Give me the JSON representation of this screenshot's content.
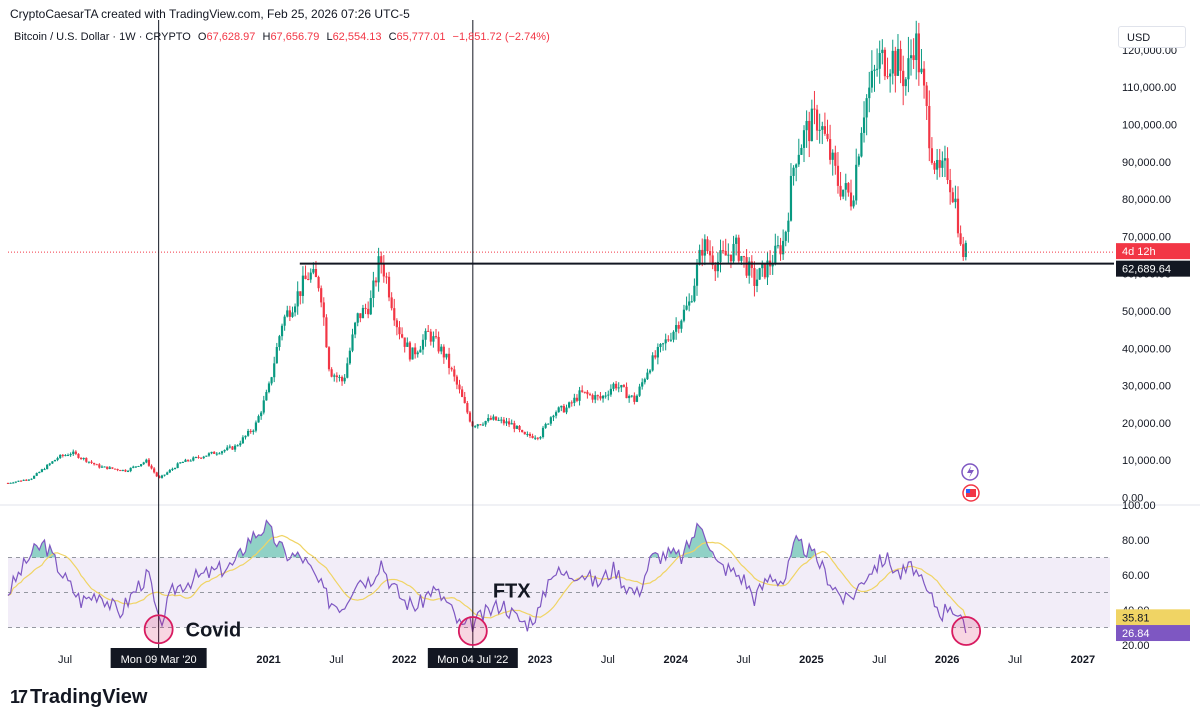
{
  "header": {
    "credit": "CryptoCaesarTA created with TradingView.com, Feb 25, 2026 07:26 UTC-5",
    "symbol": "Bitcoin / U.S. Dollar · 1W · CRYPTO",
    "open_label": "O",
    "open_value": "67,628.97",
    "high_label": "H",
    "high_value": "67,656.79",
    "low_label": "L",
    "low_value": "62,554.13",
    "close_label": "C",
    "close_value": "65,777.01",
    "change": "−1,851.72 (−2.74%)",
    "currency": "USD"
  },
  "logo": {
    "text": "TradingView",
    "mark": "17"
  },
  "colors": {
    "up": "#089981",
    "down": "#f23645",
    "rsi": "#7e57c2",
    "rsi_ma": "#f0d464",
    "band": "#ede7f6",
    "annot": "#d81b60"
  },
  "chart_data": [
    {
      "type": "candlestick",
      "title": "Bitcoin / U.S. Dollar · 1W · CRYPTO",
      "y_ticks": [
        0,
        10000,
        20000,
        30000,
        40000,
        50000,
        60000,
        70000,
        80000,
        90000,
        100000,
        110000,
        120000
      ],
      "y_tick_labels": [
        "0.00",
        "10,000.00",
        "20,000.00",
        "30,000.00",
        "40,000.00",
        "50,000.00",
        "60,000.00",
        "70,000.00",
        "80,000.00",
        "90,000.00",
        "100,000.00",
        "110,000.00",
        "120,000.00"
      ],
      "ylim": [
        -2000,
        128000
      ],
      "x_tick_labels": [
        "Jul",
        "2021",
        "Jul",
        "2022",
        "2023",
        "Jul",
        "2024",
        "Jul",
        "2025",
        "Jul",
        "2026",
        "Jul",
        "2027"
      ],
      "x_tick_dates": [
        2019.5,
        2021.0,
        2021.5,
        2022.0,
        2023.0,
        2023.5,
        2024.0,
        2024.5,
        2025.0,
        2025.5,
        2026.0,
        2026.5,
        2027.0
      ],
      "xlim": [
        2019.08,
        2027.2
      ],
      "price_path": [
        [
          2019.08,
          3900
        ],
        [
          2019.25,
          5100
        ],
        [
          2019.45,
          10800
        ],
        [
          2019.55,
          12000
        ],
        [
          2019.75,
          8300
        ],
        [
          2019.95,
          7200
        ],
        [
          2020.1,
          9800
        ],
        [
          2020.19,
          5000
        ],
        [
          2020.35,
          9300
        ],
        [
          2020.55,
          11500
        ],
        [
          2020.75,
          13500
        ],
        [
          2020.9,
          19000
        ],
        [
          2021.0,
          29000
        ],
        [
          2021.1,
          47000
        ],
        [
          2021.3,
          60000
        ],
        [
          2021.38,
          57000
        ],
        [
          2021.45,
          34000
        ],
        [
          2021.55,
          31000
        ],
        [
          2021.65,
          48000
        ],
        [
          2021.75,
          52000
        ],
        [
          2021.82,
          64000
        ],
        [
          2021.86,
          60000
        ],
        [
          2021.95,
          46000
        ],
        [
          2022.05,
          38000
        ],
        [
          2022.18,
          44000
        ],
        [
          2022.3,
          38000
        ],
        [
          2022.4,
          29000
        ],
        [
          2022.5,
          19500
        ],
        [
          2022.65,
          21000
        ],
        [
          2022.8,
          19500
        ],
        [
          2022.88,
          16500
        ],
        [
          2023.0,
          16600
        ],
        [
          2023.1,
          23000
        ],
        [
          2023.2,
          24000
        ],
        [
          2023.3,
          28000
        ],
        [
          2023.45,
          26500
        ],
        [
          2023.55,
          30500
        ],
        [
          2023.7,
          26000
        ],
        [
          2023.8,
          35000
        ],
        [
          2023.95,
          43000
        ],
        [
          2024.1,
          52000
        ],
        [
          2024.2,
          68000
        ],
        [
          2024.3,
          63000
        ],
        [
          2024.45,
          67000
        ],
        [
          2024.58,
          58000
        ],
        [
          2024.7,
          63000
        ],
        [
          2024.8,
          69000
        ],
        [
          2024.88,
          92000
        ],
        [
          2024.96,
          98000
        ],
        [
          2025.05,
          102000
        ],
        [
          2025.2,
          84000
        ],
        [
          2025.3,
          80000
        ],
        [
          2025.38,
          104000
        ],
        [
          2025.5,
          117000
        ],
        [
          2025.6,
          118000
        ],
        [
          2025.7,
          112000
        ],
        [
          2025.76,
          124000
        ],
        [
          2025.82,
          110000
        ],
        [
          2025.88,
          95000
        ],
        [
          2025.93,
          86000
        ],
        [
          2026.0,
          88000
        ],
        [
          2026.07,
          78000
        ],
        [
          2026.1,
          66000
        ],
        [
          2026.14,
          65777
        ]
      ],
      "hline": {
        "value": 62689.64,
        "label": "62,689.64"
      },
      "last_price": 65777.01,
      "countdown_label": "4d 12h"
    },
    {
      "type": "line",
      "title": "RSI",
      "y_ticks": [
        20,
        40,
        60,
        80,
        100
      ],
      "y_tick_labels": [
        "20.00",
        "40.00",
        "60.00",
        "80.00",
        "100.00"
      ],
      "ylim": [
        20,
        100
      ],
      "band": [
        30,
        70
      ],
      "midline": 50,
      "rsi_path": [
        [
          2019.08,
          50
        ],
        [
          2019.25,
          72
        ],
        [
          2019.35,
          78
        ],
        [
          2019.5,
          58
        ],
        [
          2019.62,
          45
        ],
        [
          2019.75,
          50
        ],
        [
          2019.9,
          38
        ],
        [
          2020.05,
          55
        ],
        [
          2020.12,
          60
        ],
        [
          2020.19,
          30
        ],
        [
          2020.3,
          52
        ],
        [
          2020.45,
          58
        ],
        [
          2020.6,
          62
        ],
        [
          2020.75,
          66
        ],
        [
          2020.85,
          80
        ],
        [
          2020.98,
          88
        ],
        [
          2021.05,
          80
        ],
        [
          2021.12,
          72
        ],
        [
          2021.25,
          70
        ],
        [
          2021.35,
          58
        ],
        [
          2021.45,
          45
        ],
        [
          2021.55,
          42
        ],
        [
          2021.65,
          58
        ],
        [
          2021.75,
          57
        ],
        [
          2021.83,
          68
        ],
        [
          2021.9,
          55
        ],
        [
          2022.0,
          45
        ],
        [
          2022.1,
          42
        ],
        [
          2022.2,
          52
        ],
        [
          2022.3,
          46
        ],
        [
          2022.42,
          30
        ],
        [
          2022.5,
          32
        ],
        [
          2022.6,
          38
        ],
        [
          2022.72,
          44
        ],
        [
          2022.82,
          36
        ],
        [
          2022.9,
          32
        ],
        [
          2023.0,
          40
        ],
        [
          2023.08,
          62
        ],
        [
          2023.2,
          60
        ],
        [
          2023.3,
          62
        ],
        [
          2023.42,
          55
        ],
        [
          2023.55,
          64
        ],
        [
          2023.62,
          55
        ],
        [
          2023.72,
          49
        ],
        [
          2023.82,
          70
        ],
        [
          2023.95,
          72
        ],
        [
          2024.05,
          70
        ],
        [
          2024.15,
          86
        ],
        [
          2024.2,
          89
        ],
        [
          2024.3,
          66
        ],
        [
          2024.4,
          63
        ],
        [
          2024.5,
          58
        ],
        [
          2024.58,
          47
        ],
        [
          2024.7,
          60
        ],
        [
          2024.8,
          56
        ],
        [
          2024.88,
          78
        ],
        [
          2024.96,
          75
        ],
        [
          2025.05,
          68
        ],
        [
          2025.15,
          55
        ],
        [
          2025.25,
          45
        ],
        [
          2025.32,
          50
        ],
        [
          2025.42,
          62
        ],
        [
          2025.55,
          70
        ],
        [
          2025.65,
          60
        ],
        [
          2025.75,
          65
        ],
        [
          2025.83,
          52
        ],
        [
          2025.9,
          45
        ],
        [
          2025.96,
          38
        ],
        [
          2026.02,
          44
        ],
        [
          2026.08,
          37
        ],
        [
          2026.14,
          26.84
        ]
      ],
      "rsi_last": 26.84,
      "rsi_last_label": "26.84",
      "ma_last": 35.81,
      "ma_last_label": "35.81"
    }
  ],
  "annotations": {
    "covid_label": "Covid",
    "ftx_label": "FTX",
    "covid_date_label": "Mon 09 Mar '20",
    "ftx_date_label": "Mon 04 Jul '22",
    "covid_date": 2020.19,
    "ftx_date": 2022.505
  }
}
